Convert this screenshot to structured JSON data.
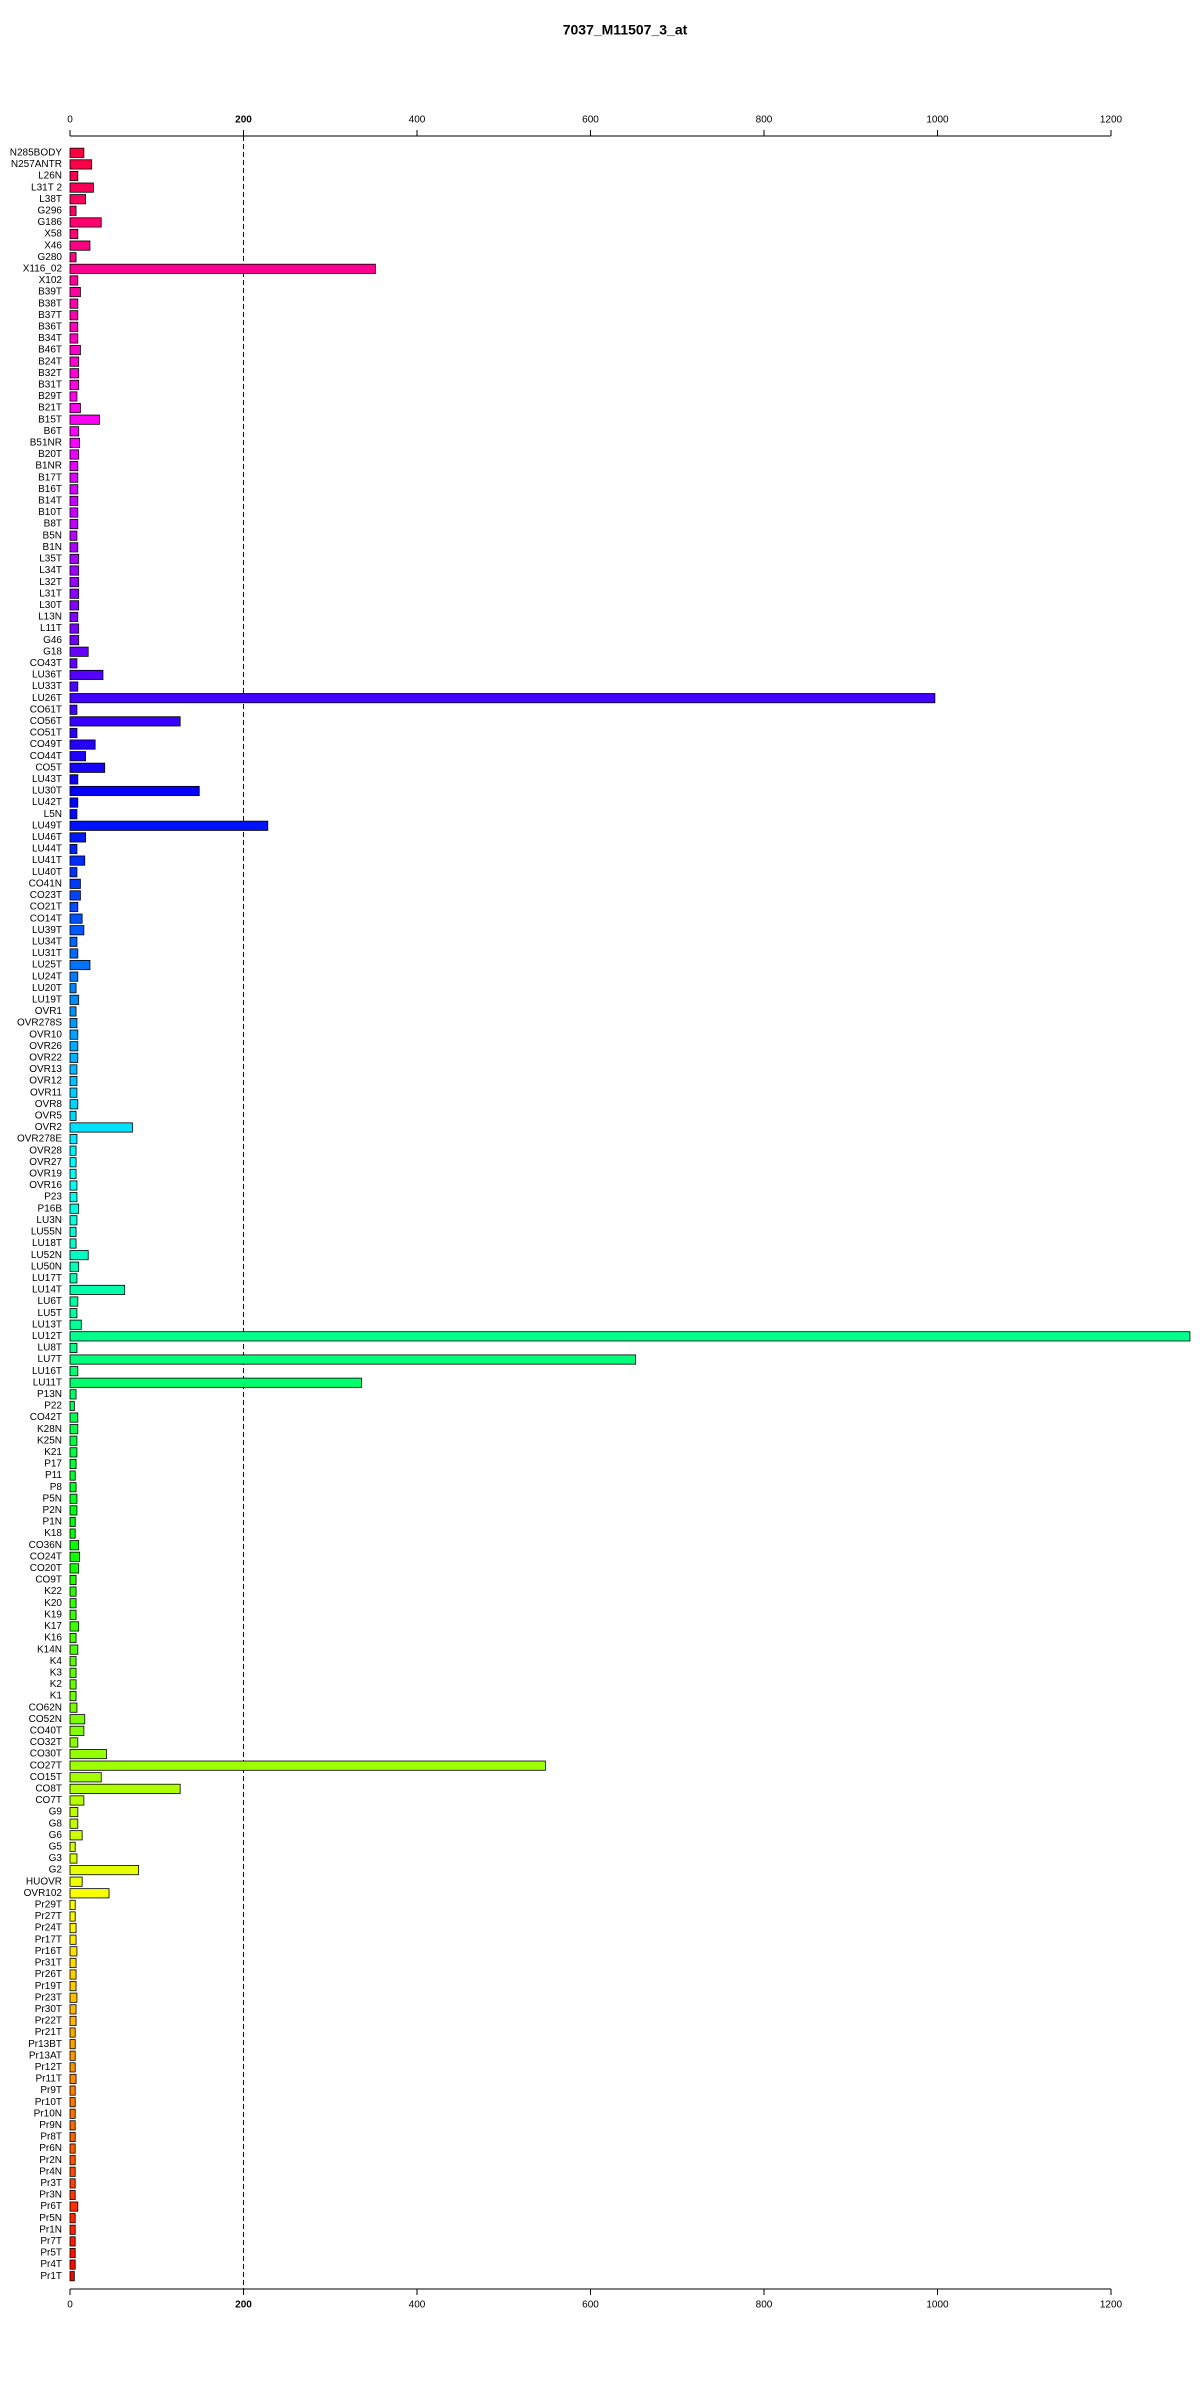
{
  "chart_data": {
    "type": "bar",
    "orientation": "horizontal",
    "title": "7037_M11507_3_at",
    "categories": [
      "N285BODY",
      "N257ANTR",
      "L26N",
      "L31T 2",
      "L38T",
      "G296",
      "G186",
      "X58",
      "X46",
      "G280",
      "X116_02",
      "X102",
      "B39T",
      "B38T",
      "B37T",
      "B36T",
      "B34T",
      "B46T",
      "B24T",
      "B32T",
      "B31T",
      "B29T",
      "B21T",
      "B15T",
      "B6T",
      "B51NR",
      "B20T",
      "B1NR",
      "B17T",
      "B16T",
      "B14T",
      "B10T",
      "B8T",
      "B5N",
      "B1N",
      "L35T",
      "L34T",
      "L32T",
      "L31T",
      "L30T",
      "L13N",
      "L11T",
      "G46",
      "G18",
      "CO43T",
      "LU36T",
      "LU33T",
      "LU26T",
      "CO61T",
      "CO56T",
      "CO51T",
      "CO49T",
      "CO44T",
      "CO5T",
      "LU43T",
      "LU30T",
      "LU42T",
      "L5N",
      "LU49T",
      "LU46T",
      "LU44T",
      "LU41T",
      "LU40T",
      "CO41N",
      "CO23T",
      "CO21T",
      "CO14T",
      "LU39T",
      "LU34T",
      "LU31T",
      "LU25T",
      "LU24T",
      "LU20T",
      "LU19T",
      "OVR1",
      "OVR278S",
      "OVR10",
      "OVR26",
      "OVR22",
      "OVR13",
      "OVR12",
      "OVR11",
      "OVR8",
      "OVR5",
      "OVR2",
      "OVR278E",
      "OVR28",
      "OVR27",
      "OVR19",
      "OVR16",
      "P23",
      "P16B",
      "LU3N",
      "LU55N",
      "LU18T",
      "LU52N",
      "LU50N",
      "LU17T",
      "LU14T",
      "LU6T",
      "LU5T",
      "LU13T",
      "LU12T",
      "LU8T",
      "LU7T",
      "LU16T",
      "LU11T",
      "P13N",
      "P22",
      "CO42T",
      "K28N",
      "K25N",
      "K21",
      "P17",
      "P11",
      "P8",
      "P5N",
      "P2N",
      "P1N",
      "K18",
      "CO36N",
      "CO24T",
      "CO20T",
      "CO9T",
      "K22",
      "K20",
      "K19",
      "K17",
      "K16",
      "K14N",
      "K4",
      "K3",
      "K2",
      "K1",
      "CO62N",
      "CO52N",
      "CO40T",
      "CO32T",
      "CO30T",
      "CO27T",
      "CO15T",
      "CO8T",
      "CO7T",
      "G9",
      "G8",
      "G6",
      "G5",
      "G3",
      "G2",
      "HUOVR",
      "OVR102",
      "Pr29T",
      "Pr27T",
      "Pr24T",
      "Pr17T",
      "Pr16T",
      "Pr31T",
      "Pr26T",
      "Pr19T",
      "Pr23T",
      "Pr30T",
      "Pr22T",
      "Pr21T",
      "Pr13BT",
      "Pr13AT",
      "Pr12T",
      "Pr11T",
      "Pr9T",
      "Pr10T",
      "Pr10N",
      "Pr9N",
      "Pr8T",
      "Pr6N",
      "Pr2N",
      "Pr4N",
      "Pr3T",
      "Pr3N",
      "Pr6T",
      "Pr5N",
      "Pr1N",
      "Pr7T",
      "Pr5T",
      "Pr4T",
      "Pr1T"
    ],
    "values": [
      16,
      25,
      9,
      27,
      18,
      7,
      36,
      9,
      23,
      7,
      352,
      9,
      12,
      9,
      9,
      9,
      9,
      12,
      10,
      10,
      10,
      8,
      12,
      34,
      10,
      11,
      10,
      9,
      9,
      9,
      9,
      9,
      9,
      8,
      9,
      10,
      10,
      10,
      10,
      10,
      9,
      10,
      10,
      21,
      8,
      38,
      9,
      997,
      8,
      127,
      8,
      29,
      18,
      40,
      9,
      149,
      9,
      8,
      228,
      18,
      8,
      17,
      8,
      12,
      12,
      9,
      14,
      16,
      8,
      9,
      23,
      9,
      7,
      10,
      7,
      8,
      9,
      9,
      9,
      8,
      8,
      8,
      9,
      7,
      72,
      8,
      7,
      7,
      7,
      8,
      8,
      10,
      8,
      7,
      7,
      21,
      10,
      8,
      63,
      9,
      8,
      13,
      1291,
      8,
      652,
      9,
      336,
      7,
      5,
      9,
      9,
      8,
      8,
      7,
      6,
      7,
      8,
      8,
      6,
      6,
      10,
      11,
      10,
      7,
      7,
      7,
      7,
      10,
      7,
      9,
      7,
      7,
      7,
      7,
      8,
      17,
      16,
      9,
      42,
      548,
      36,
      127,
      16,
      9,
      9,
      14,
      6,
      8,
      79,
      14,
      45,
      6,
      6,
      7,
      7,
      8,
      7,
      7,
      7,
      8,
      7,
      7,
      6,
      6,
      6,
      6,
      7,
      6,
      6,
      6,
      6,
      6,
      6,
      6,
      6,
      6,
      6,
      9,
      6,
      6,
      6,
      6,
      6,
      5
    ],
    "colors": [
      "hsl(345,100%,50%)",
      "hsl(343,100%,50%)",
      "hsl(341,100%,50%)",
      "hsl(339,100%,50%)",
      "hsl(337,100%,50%)",
      "hsl(336,100%,50%)",
      "hsl(334,100%,50%)",
      "hsl(332,100%,50%)",
      "hsl(330,100%,50%)",
      "hsl(328,100%,50%)",
      "hsl(326,100%,50%)",
      "hsl(324,100%,50%)",
      "hsl(322,100%,50%)",
      "hsl(320,100%,50%)",
      "hsl(319,100%,50%)",
      "hsl(317,100%,50%)",
      "hsl(315,100%,50%)",
      "hsl(313,100%,50%)",
      "hsl(311,100%,50%)",
      "hsl(309,100%,50%)",
      "hsl(307,100%,50%)",
      "hsl(305,100%,50%)",
      "hsl(304,100%,50%)",
      "hsl(302,100%,50%)",
      "hsl(300,100%,50%)",
      "hsl(298,100%,50%)",
      "hsl(296,100%,50%)",
      "hsl(294,100%,50%)",
      "hsl(292,100%,50%)",
      "hsl(290,100%,50%)",
      "hsl(288,100%,50%)",
      "hsl(287,100%,50%)",
      "hsl(285,100%,50%)",
      "hsl(283,100%,50%)",
      "hsl(281,100%,50%)",
      "hsl(279,100%,50%)",
      "hsl(277,100%,50%)",
      "hsl(275,100%,50%)",
      "hsl(273,100%,50%)",
      "hsl(271,100%,50%)",
      "hsl(270,100%,50%)",
      "hsl(268,100%,50%)",
      "hsl(266,100%,50%)",
      "hsl(264,100%,50%)",
      "hsl(262,100%,50%)",
      "hsl(260,100%,50%)",
      "hsl(258,100%,50%)",
      "hsl(256,100%,50%)",
      "hsl(255,100%,50%)",
      "hsl(253,100%,50%)",
      "hsl(251,100%,50%)",
      "hsl(249,100%,50%)",
      "hsl(247,100%,50%)",
      "hsl(245,100%,50%)",
      "hsl(243,100%,50%)",
      "hsl(241,100%,50%)",
      "hsl(239,100%,50%)",
      "hsl(238,100%,50%)",
      "hsl(236,100%,50%)",
      "hsl(234,100%,50%)",
      "hsl(232,100%,50%)",
      "hsl(230,100%,50%)",
      "hsl(228,100%,50%)",
      "hsl(226,100%,50%)",
      "hsl(224,100%,50%)",
      "hsl(222,100%,50%)",
      "hsl(221,100%,50%)",
      "hsl(219,100%,50%)",
      "hsl(217,100%,50%)",
      "hsl(215,100%,50%)",
      "hsl(213,100%,50%)",
      "hsl(211,100%,50%)",
      "hsl(209,100%,50%)",
      "hsl(207,100%,50%)",
      "hsl(206,100%,50%)",
      "hsl(204,100%,50%)",
      "hsl(202,100%,50%)",
      "hsl(200,100%,50%)",
      "hsl(198,100%,50%)",
      "hsl(196,100%,50%)",
      "hsl(194,100%,50%)",
      "hsl(192,100%,50%)",
      "hsl(190,100%,50%)",
      "hsl(189,100%,50%)",
      "hsl(187,100%,50%)",
      "hsl(185,100%,50%)",
      "hsl(183,100%,50%)",
      "hsl(181,100%,50%)",
      "hsl(179,100%,50%)",
      "hsl(177,100%,50%)",
      "hsl(175,100%,50%)",
      "hsl(173,100%,50%)",
      "hsl(172,100%,50%)",
      "hsl(170,100%,50%)",
      "hsl(168,100%,50%)",
      "hsl(166,100%,50%)",
      "hsl(164,100%,50%)",
      "hsl(162,100%,50%)",
      "hsl(160,100%,50%)",
      "hsl(158,100%,50%)",
      "hsl(157,100%,50%)",
      "hsl(155,100%,50%)",
      "hsl(153,100%,50%)",
      "hsl(151,100%,50%)",
      "hsl(149,100%,50%)",
      "hsl(147,100%,50%)",
      "hsl(145,100%,50%)",
      "hsl(143,100%,50%)",
      "hsl(141,100%,50%)",
      "hsl(140,100%,50%)",
      "hsl(138,100%,50%)",
      "hsl(136,100%,50%)",
      "hsl(134,100%,50%)",
      "hsl(132,100%,50%)",
      "hsl(130,100%,50%)",
      "hsl(128,100%,50%)",
      "hsl(126,100%,50%)",
      "hsl(124,100%,50%)",
      "hsl(123,100%,50%)",
      "hsl(121,100%,50%)",
      "hsl(119,100%,50%)",
      "hsl(117,100%,50%)",
      "hsl(115,100%,50%)",
      "hsl(113,100%,50%)",
      "hsl(111,100%,50%)",
      "hsl(109,100%,50%)",
      "hsl(107,100%,50%)",
      "hsl(106,100%,50%)",
      "hsl(104,100%,50%)",
      "hsl(102,100%,50%)",
      "hsl(100,100%,50%)",
      "hsl(98,100%,50%)",
      "hsl(96,100%,50%)",
      "hsl(94,100%,50%)",
      "hsl(92,100%,50%)",
      "hsl(91,100%,50%)",
      "hsl(89,100%,50%)",
      "hsl(87,100%,50%)",
      "hsl(85,100%,50%)",
      "hsl(83,100%,50%)",
      "hsl(81,100%,50%)",
      "hsl(79,100%,50%)",
      "hsl(77,100%,50%)",
      "hsl(75,100%,50%)",
      "hsl(74,100%,50%)",
      "hsl(72,100%,50%)",
      "hsl(70,100%,50%)",
      "hsl(68,100%,50%)",
      "hsl(66,100%,50%)",
      "hsl(64,100%,50%)",
      "hsl(62,100%,50%)",
      "hsl(60,100%,50%)",
      "hsl(58,100%,50%)",
      "hsl(57,100%,50%)",
      "hsl(55,100%,50%)",
      "hsl(53,100%,50%)",
      "hsl(51,100%,50%)",
      "hsl(49,100%,50%)",
      "hsl(47,100%,50%)",
      "hsl(45,100%,50%)",
      "hsl(43,100%,50%)",
      "hsl(42,100%,50%)",
      "hsl(40,100%,50%)",
      "hsl(38,100%,50%)",
      "hsl(36,100%,50%)",
      "hsl(34,100%,50%)",
      "hsl(32,100%,50%)",
      "hsl(30,100%,50%)",
      "hsl(28,100%,50%)",
      "hsl(26,100%,50%)",
      "hsl(25,100%,50%)",
      "hsl(23,100%,50%)",
      "hsl(21,100%,50%)",
      "hsl(19,100%,50%)",
      "hsl(17,100%,50%)",
      "hsl(15,100%,50%)",
      "hsl(13,100%,50%)",
      "hsl(11,100%,50%)",
      "hsl(9,100%,50%)",
      "hsl(8,100%,50%)",
      "hsl(6,100%,50%)",
      "hsl(4,100%,50%)",
      "hsl(2,100%,50%)",
      "hsl(0,100%,50%)"
    ],
    "xlim": [
      0,
      1200
    ],
    "xticks": [
      0,
      200,
      400,
      600,
      800,
      1000,
      1200
    ],
    "vline": 200
  }
}
